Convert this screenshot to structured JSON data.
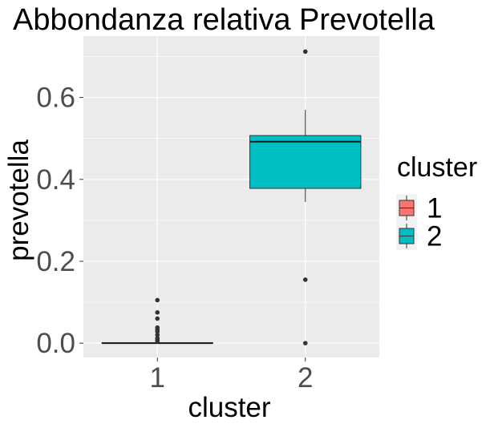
{
  "chart_data": {
    "type": "box",
    "title": "Abbondanza relativa Prevotella",
    "xlabel": "cluster",
    "ylabel": "prevotella",
    "categories": [
      "1",
      "2"
    ],
    "ylim": [
      -0.035,
      0.75
    ],
    "yticks": [
      "0.0",
      "0.2",
      "0.4",
      "0.6"
    ],
    "ytick_values": [
      0.0,
      0.2,
      0.4,
      0.6
    ],
    "grid": true,
    "background_color": "#EBEBEB",
    "gridline_color": "#FFFFFF",
    "series": [
      {
        "name": "1",
        "color": "#F8766D",
        "min": 0.0,
        "q1": 0.0,
        "median": 0.0,
        "q3": 0.001,
        "max": 0.002,
        "outliers": [
          0.005,
          0.008,
          0.012,
          0.02,
          0.028,
          0.033,
          0.038,
          0.06,
          0.075,
          0.105
        ]
      },
      {
        "name": "2",
        "color": "#00BFC4",
        "min": 0.345,
        "q1": 0.378,
        "median": 0.492,
        "q3": 0.507,
        "max": 0.57,
        "outliers": [
          0.712,
          0.155,
          0.0
        ]
      }
    ],
    "legend": {
      "title": "cluster",
      "position": "right",
      "entries": [
        "1",
        "2"
      ]
    }
  }
}
